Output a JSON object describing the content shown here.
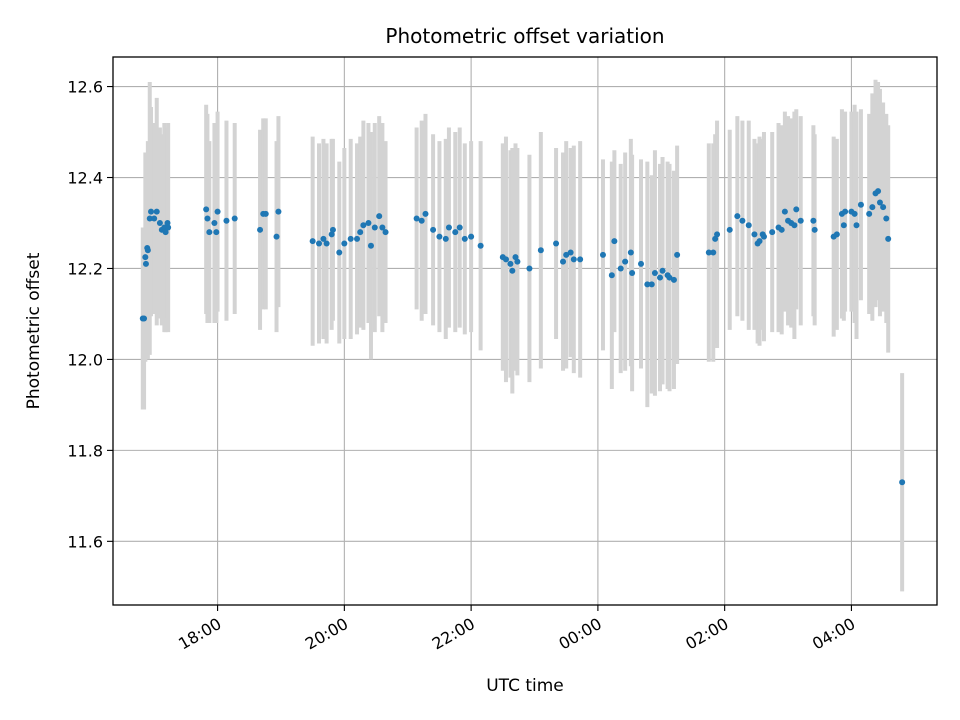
{
  "chart_data": {
    "type": "scatter",
    "title": "Photometric offset variation",
    "xlabel": "UTC time",
    "ylabel": "Photometric offset",
    "x_unit": "hours since 00:00 UTC",
    "x_ticks": [
      {
        "value": -6,
        "label": "18:00"
      },
      {
        "value": -4,
        "label": "20:00"
      },
      {
        "value": -2,
        "label": "22:00"
      },
      {
        "value": 0,
        "label": "00:00"
      },
      {
        "value": 2,
        "label": "02:00"
      },
      {
        "value": 4,
        "label": "04:00"
      }
    ],
    "y_ticks": [
      11.6,
      11.8,
      12.0,
      12.2,
      12.4,
      12.6
    ],
    "xlim": [
      -7.65,
      5.35
    ],
    "ylim": [
      11.46,
      12.665
    ],
    "grid": true,
    "colors": {
      "points": "#1f77b4",
      "errorbars": "#d3d3d3",
      "grid": "#b0b0b0"
    },
    "series": [
      {
        "points": [
          [
            -7.18,
            12.09,
            0.2
          ],
          [
            -7.16,
            12.09,
            0.2
          ],
          [
            -7.14,
            12.225,
            0.23
          ],
          [
            -7.13,
            12.21,
            0.18
          ],
          [
            -7.11,
            12.245,
            0.21
          ],
          [
            -7.1,
            12.24,
            0.24
          ],
          [
            -7.07,
            12.31,
            0.3
          ],
          [
            -7.05,
            12.325,
            0.23
          ],
          [
            -7.0,
            12.31,
            0.21
          ],
          [
            -6.96,
            12.325,
            0.25
          ],
          [
            -6.91,
            12.3,
            0.21
          ],
          [
            -6.88,
            12.285,
            0.21
          ],
          [
            -6.84,
            12.29,
            0.23
          ],
          [
            -6.82,
            12.28,
            0.22
          ],
          [
            -6.79,
            12.3,
            0.21
          ],
          [
            -6.78,
            12.29,
            0.23
          ],
          [
            -6.18,
            12.33,
            0.23
          ],
          [
            -6.16,
            12.31,
            0.23
          ],
          [
            -6.13,
            12.28,
            0.2
          ],
          [
            -6.05,
            12.3,
            0.22
          ],
          [
            -6.02,
            12.28,
            0.2
          ],
          [
            -6.0,
            12.325,
            0.22
          ],
          [
            -5.86,
            12.305,
            0.22
          ],
          [
            -5.73,
            12.31,
            0.21
          ],
          [
            -5.33,
            12.285,
            0.22
          ],
          [
            -5.28,
            12.32,
            0.21
          ],
          [
            -5.24,
            12.32,
            0.21
          ],
          [
            -5.07,
            12.27,
            0.21
          ],
          [
            -5.04,
            12.325,
            0.21
          ],
          [
            -4.5,
            12.26,
            0.23
          ],
          [
            -4.4,
            12.255,
            0.22
          ],
          [
            -4.33,
            12.265,
            0.22
          ],
          [
            -4.28,
            12.255,
            0.22
          ],
          [
            -4.2,
            12.275,
            0.21
          ],
          [
            -4.18,
            12.285,
            0.2
          ],
          [
            -4.08,
            12.235,
            0.2
          ],
          [
            -4.0,
            12.255,
            0.21
          ],
          [
            -3.9,
            12.265,
            0.22
          ],
          [
            -3.8,
            12.265,
            0.21
          ],
          [
            -3.75,
            12.28,
            0.21
          ],
          [
            -3.7,
            12.295,
            0.23
          ],
          [
            -3.62,
            12.3,
            0.22
          ],
          [
            -3.58,
            12.25,
            0.25
          ],
          [
            -3.52,
            12.29,
            0.23
          ],
          [
            -3.45,
            12.315,
            0.22
          ],
          [
            -3.4,
            12.29,
            0.23
          ],
          [
            -3.35,
            12.28,
            0.2
          ],
          [
            -2.86,
            12.31,
            0.2
          ],
          [
            -2.78,
            12.305,
            0.22
          ],
          [
            -2.72,
            12.32,
            0.22
          ],
          [
            -2.6,
            12.285,
            0.21
          ],
          [
            -2.5,
            12.27,
            0.21
          ],
          [
            -2.4,
            12.265,
            0.22
          ],
          [
            -2.35,
            12.29,
            0.22
          ],
          [
            -2.25,
            12.28,
            0.22
          ],
          [
            -2.18,
            12.29,
            0.22
          ],
          [
            -2.1,
            12.265,
            0.21
          ],
          [
            -2.0,
            12.27,
            0.21
          ],
          [
            -1.85,
            12.25,
            0.23
          ],
          [
            -1.5,
            12.225,
            0.25
          ],
          [
            -1.45,
            12.22,
            0.27
          ],
          [
            -1.38,
            12.21,
            0.25
          ],
          [
            -1.35,
            12.195,
            0.27
          ],
          [
            -1.3,
            12.225,
            0.25
          ],
          [
            -1.27,
            12.215,
            0.25
          ],
          [
            -1.08,
            12.2,
            0.25
          ],
          [
            -0.9,
            12.24,
            0.26
          ],
          [
            -0.66,
            12.255,
            0.21
          ],
          [
            -0.55,
            12.215,
            0.24
          ],
          [
            -0.5,
            12.23,
            0.25
          ],
          [
            -0.43,
            12.235,
            0.23
          ],
          [
            -0.38,
            12.22,
            0.25
          ],
          [
            -0.28,
            12.22,
            0.26
          ],
          [
            0.08,
            12.23,
            0.21
          ],
          [
            0.22,
            12.185,
            0.25
          ],
          [
            0.26,
            12.26,
            0.2
          ],
          [
            0.36,
            12.2,
            0.23
          ],
          [
            0.43,
            12.215,
            0.24
          ],
          [
            0.52,
            12.235,
            0.25
          ],
          [
            0.54,
            12.19,
            0.26
          ],
          [
            0.68,
            12.21,
            0.23
          ],
          [
            0.78,
            12.165,
            0.27
          ],
          [
            0.85,
            12.165,
            0.24
          ],
          [
            0.9,
            12.19,
            0.27
          ],
          [
            0.98,
            12.18,
            0.25
          ],
          [
            1.02,
            12.195,
            0.25
          ],
          [
            1.1,
            12.185,
            0.25
          ],
          [
            1.13,
            12.18,
            0.25
          ],
          [
            1.2,
            12.175,
            0.24
          ],
          [
            1.25,
            12.23,
            0.24
          ],
          [
            1.75,
            12.235,
            0.24
          ],
          [
            1.82,
            12.235,
            0.24
          ],
          [
            1.85,
            12.265,
            0.23
          ],
          [
            1.88,
            12.275,
            0.25
          ],
          [
            2.08,
            12.285,
            0.22
          ],
          [
            2.2,
            12.315,
            0.22
          ],
          [
            2.28,
            12.305,
            0.22
          ],
          [
            2.38,
            12.295,
            0.23
          ],
          [
            2.47,
            12.275,
            0.21
          ],
          [
            2.52,
            12.255,
            0.22
          ],
          [
            2.55,
            12.26,
            0.23
          ],
          [
            2.6,
            12.275,
            0.21
          ],
          [
            2.62,
            12.27,
            0.23
          ],
          [
            2.75,
            12.28,
            0.22
          ],
          [
            2.85,
            12.29,
            0.23
          ],
          [
            2.9,
            12.285,
            0.23
          ],
          [
            2.95,
            12.325,
            0.22
          ],
          [
            3.0,
            12.305,
            0.23
          ],
          [
            3.05,
            12.3,
            0.23
          ],
          [
            3.1,
            12.295,
            0.25
          ],
          [
            3.13,
            12.33,
            0.22
          ],
          [
            3.2,
            12.305,
            0.23
          ],
          [
            3.4,
            12.305,
            0.21
          ],
          [
            3.42,
            12.285,
            0.21
          ],
          [
            3.72,
            12.27,
            0.22
          ],
          [
            3.77,
            12.275,
            0.21
          ],
          [
            3.85,
            12.32,
            0.23
          ],
          [
            3.9,
            12.325,
            0.22
          ],
          [
            3.88,
            12.295,
            0.21
          ],
          [
            4.0,
            12.325,
            0.22
          ],
          [
            4.05,
            12.32,
            0.24
          ],
          [
            4.08,
            12.295,
            0.25
          ],
          [
            4.15,
            12.34,
            0.21
          ],
          [
            4.28,
            12.32,
            0.22
          ],
          [
            4.33,
            12.335,
            0.25
          ],
          [
            4.38,
            12.365,
            0.25
          ],
          [
            4.42,
            12.37,
            0.24
          ],
          [
            4.45,
            12.345,
            0.25
          ],
          [
            4.5,
            12.335,
            0.23
          ],
          [
            4.55,
            12.31,
            0.23
          ],
          [
            4.58,
            12.265,
            0.25
          ],
          [
            4.8,
            11.73,
            0.24
          ]
        ]
      }
    ]
  }
}
